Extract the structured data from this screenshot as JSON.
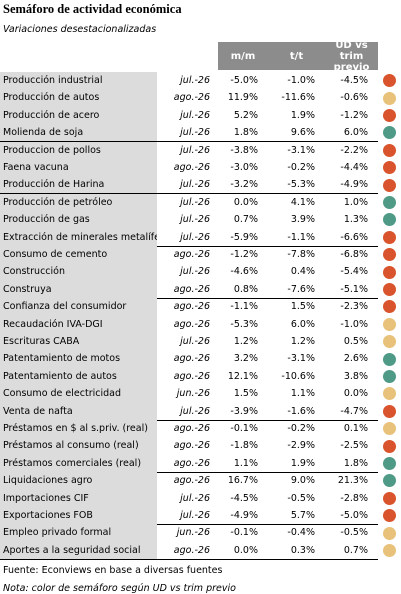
{
  "title": "Semáforo de actividad económica",
  "subtitle": "Variaciones desestacionalizadas",
  "headers": [
    "m/m",
    "t/t",
    "UD vs trim previo"
  ],
  "groups": [
    {
      "rows": [
        {
          "name": "Producción industrial",
          "date": "jul.-26",
          "values": [
            "-5.0%",
            "-1.0%",
            "-4.5%"
          ],
          "light": "#d9542c"
        },
        {
          "name": "Producción de autos",
          "date": "ago.-26",
          "values": [
            "11.9%",
            "-11.6%",
            "-0.6%"
          ],
          "light": "#e8c27a"
        },
        {
          "name": "Producción de acero",
          "date": "jul.-26",
          "values": [
            "5.2%",
            "1.9%",
            "-1.2%"
          ],
          "light": "#d9542c"
        },
        {
          "name": "Molienda de soja",
          "date": "jul.-26",
          "values": [
            "1.8%",
            "9.6%",
            "6.0%"
          ],
          "light": "#4f9a86"
        }
      ]
    },
    {
      "rows": [
        {
          "name": "Produccion de pollos",
          "date": "jul.-26",
          "values": [
            "-3.8%",
            "-3.1%",
            "-2.2%"
          ],
          "light": "#d9542c"
        },
        {
          "name": "Faena vacuna",
          "date": "ago.-26",
          "values": [
            "-3.0%",
            "-0.2%",
            "-4.4%"
          ],
          "light": "#d9542c"
        },
        {
          "name": "Producción de Harina",
          "date": "jul.-26",
          "values": [
            "-3.2%",
            "-5.3%",
            "-4.9%"
          ],
          "light": "#d9542c"
        }
      ]
    },
    {
      "rows": [
        {
          "name": "Producción de petróleo",
          "date": "jul.-26",
          "values": [
            "0.0%",
            "4.1%",
            "1.0%"
          ],
          "light": "#4f9a86"
        },
        {
          "name": "Producción de gas",
          "date": "jul.-26",
          "values": [
            "0.7%",
            "3.9%",
            "1.3%"
          ],
          "light": "#4f9a86"
        },
        {
          "name": "Extracción de minerales metalíferos",
          "date": "jul.-26",
          "values": [
            "-5.9%",
            "-1.1%",
            "-6.6%"
          ],
          "light": "#d9542c"
        }
      ]
    },
    {
      "rows": [
        {
          "name": "Consumo de cemento",
          "date": "ago.-26",
          "values": [
            "-1.2%",
            "-7.8%",
            "-6.8%"
          ],
          "light": "#d9542c"
        },
        {
          "name": "Construcción",
          "date": "jul.-26",
          "values": [
            "-4.6%",
            "0.4%",
            "-5.4%"
          ],
          "light": "#d9542c"
        },
        {
          "name": "Construya",
          "date": "ago.-26",
          "values": [
            "0.8%",
            "-7.6%",
            "-5.1%"
          ],
          "light": "#d9542c"
        }
      ]
    },
    {
      "rows": [
        {
          "name": "Confianza del consumidor",
          "date": "ago.-26",
          "values": [
            "-1.1%",
            "1.5%",
            "-2.3%"
          ],
          "light": "#d9542c"
        },
        {
          "name": "Recaudación IVA-DGI",
          "date": "ago.-26",
          "values": [
            "-5.3%",
            "6.0%",
            "-1.0%"
          ],
          "light": "#e8c27a"
        },
        {
          "name": "Escrituras CABA",
          "date": "jul.-26",
          "values": [
            "1.2%",
            "1.2%",
            "0.5%"
          ],
          "light": "#e8c27a"
        },
        {
          "name": "Patentamiento de motos",
          "date": "ago.-26",
          "values": [
            "3.2%",
            "-3.1%",
            "2.6%"
          ],
          "light": "#4f9a86"
        },
        {
          "name": "Patentamiento de autos",
          "date": "ago.-26",
          "values": [
            "12.1%",
            "-10.6%",
            "3.8%"
          ],
          "light": "#4f9a86"
        },
        {
          "name": "Consumo de electricidad",
          "date": "jun.-26",
          "values": [
            "1.5%",
            "1.1%",
            "0.0%"
          ],
          "light": "#e8c27a"
        },
        {
          "name": "Venta de nafta",
          "date": "jul.-26",
          "values": [
            "-3.9%",
            "-1.6%",
            "-4.7%"
          ],
          "light": "#d9542c"
        }
      ]
    },
    {
      "rows": [
        {
          "name": "Préstamos en $ al s.priv. (real)",
          "date": "ago.-26",
          "values": [
            "-0.1%",
            "-0.2%",
            "0.1%"
          ],
          "light": "#e8c27a"
        },
        {
          "name": "Préstamos al consumo (real)",
          "date": "ago.-26",
          "values": [
            "-1.8%",
            "-2.9%",
            "-2.5%"
          ],
          "light": "#d9542c"
        },
        {
          "name": "Préstamos comerciales (real)",
          "date": "ago.-26",
          "values": [
            "1.1%",
            "1.9%",
            "1.8%"
          ],
          "light": "#4f9a86"
        }
      ]
    },
    {
      "rows": [
        {
          "name": "Liquidaciones agro",
          "date": "ago.-26",
          "values": [
            "16.7%",
            "9.0%",
            "21.3%"
          ],
          "light": "#4f9a86"
        },
        {
          "name": "Importaciones CIF",
          "date": "jul.-26",
          "values": [
            "-4.5%",
            "-0.5%",
            "-2.8%"
          ],
          "light": "#d9542c"
        },
        {
          "name": "Exportaciones FOB",
          "date": "jul.-26",
          "values": [
            "-4.9%",
            "5.7%",
            "-5.0%"
          ],
          "light": "#d9542c"
        }
      ]
    },
    {
      "rows": [
        {
          "name": "Empleo privado formal",
          "date": "jun.-26",
          "values": [
            "-0.1%",
            "-0.4%",
            "-0.5%"
          ],
          "light": "#e8c27a"
        },
        {
          "name": "Aportes a la seguridad social",
          "date": "ago.-26",
          "values": [
            "0.0%",
            "0.3%",
            "0.7%"
          ],
          "light": "#e8c27a"
        }
      ]
    }
  ],
  "source": "Fuente: Econviews en base a diversas fuentes",
  "note": "Nota: color de semáforo según UD vs trim previo"
}
